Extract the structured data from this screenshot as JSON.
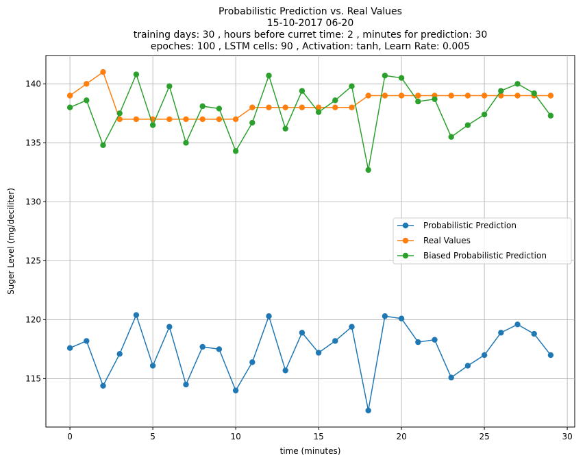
{
  "chart_data": {
    "type": "line",
    "title": [
      "Probabilistic Prediction vs. Real Values",
      "15-10-2017 06-20",
      "training days: 30 , hours before curret time: 2 , minutes for prediction: 30",
      "epoches: 100 , LSTM cells: 90 , Activation: tanh, Learn Rate: 0.005"
    ],
    "xlabel": "time (minutes)",
    "ylabel": "Suger Level (mg/deciliter)",
    "xlim": [
      -1.45,
      30.45
    ],
    "ylim": [
      110.9,
      142.4
    ],
    "xticks": [
      0,
      5,
      10,
      15,
      20,
      25,
      30
    ],
    "yticks": [
      115,
      120,
      125,
      130,
      135,
      140
    ],
    "grid": true,
    "legend_position": "center-right",
    "x": [
      0,
      1,
      2,
      3,
      4,
      5,
      6,
      7,
      8,
      9,
      10,
      11,
      12,
      13,
      14,
      15,
      16,
      17,
      18,
      19,
      20,
      21,
      22,
      23,
      24,
      25,
      26,
      27,
      28,
      29
    ],
    "series": [
      {
        "name": "Probabilistic Prediction",
        "color": "#1f77b4",
        "values": [
          117.6,
          118.2,
          114.4,
          117.1,
          120.4,
          116.1,
          119.4,
          114.5,
          117.7,
          117.5,
          114.0,
          116.4,
          120.3,
          115.7,
          118.9,
          117.2,
          118.2,
          119.4,
          112.3,
          120.3,
          120.1,
          118.1,
          118.3,
          115.1,
          116.1,
          117.0,
          118.9,
          119.6,
          118.8,
          117.0
        ]
      },
      {
        "name": "Real Values",
        "color": "#ff7f0e",
        "values": [
          139,
          140,
          141,
          137,
          137,
          137,
          137,
          137,
          137,
          137,
          137,
          138,
          138,
          138,
          138,
          138,
          138,
          138,
          139,
          139,
          139,
          139,
          139,
          139,
          139,
          139,
          139,
          139,
          139,
          139
        ]
      },
      {
        "name": "Biased Probabilistic Prediction",
        "color": "#2ca02c",
        "values": [
          138.0,
          138.6,
          134.8,
          137.5,
          140.8,
          136.5,
          139.8,
          135.0,
          138.1,
          137.9,
          134.3,
          136.7,
          140.7,
          136.2,
          139.4,
          137.6,
          138.6,
          139.8,
          132.7,
          140.7,
          140.5,
          138.5,
          138.7,
          135.5,
          136.5,
          137.4,
          139.4,
          140.0,
          139.2,
          137.3
        ]
      }
    ]
  }
}
